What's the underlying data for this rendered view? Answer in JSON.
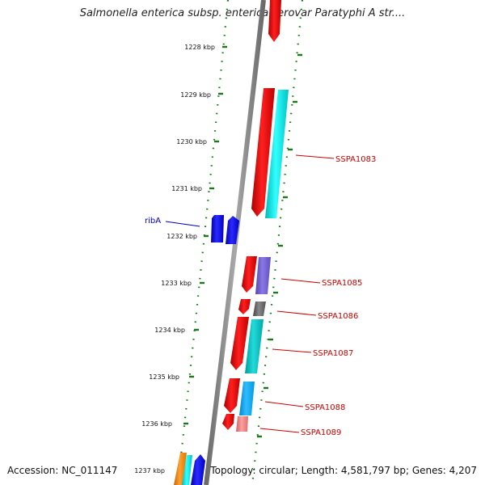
{
  "title": "Salmonella enterica subsp. enterica serovar Paratyphi A str....",
  "footer": {
    "accession": "Accession: NC_011147",
    "topology": "Topology: circular; Length: 4,581,797 bp; Genes: 4,207"
  },
  "colors": {
    "backbone": "#808080",
    "ruler_ticks": "#1a7a1a",
    "label_red": "#cc0000",
    "label_blue": "#0000bb"
  },
  "kbp_labels": [
    "1228 kbp",
    "1229 kbp",
    "1230 kbp",
    "1231 kbp",
    "1232 kbp",
    "1233 kbp",
    "1234 kbp",
    "1235 kbp",
    "1236 kbp",
    "1237 kbp"
  ],
  "gene_labels": [
    {
      "text": "ribA",
      "color": "#0000bb"
    },
    {
      "text": "SSPA1083",
      "color": "#cc0000"
    },
    {
      "text": "SSPA1085",
      "color": "#cc0000"
    },
    {
      "text": "SSPA1086",
      "color": "#cc0000"
    },
    {
      "text": "SSPA1087",
      "color": "#cc0000"
    },
    {
      "text": "SSPA1088",
      "color": "#cc0000"
    },
    {
      "text": "SSPA1089",
      "color": "#cc0000"
    }
  ]
}
